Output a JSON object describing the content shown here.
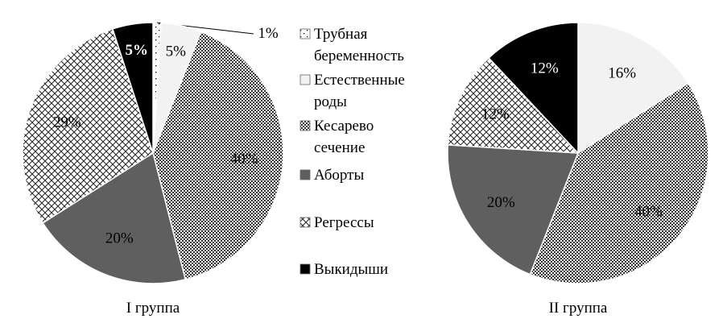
{
  "chart_data": [
    {
      "type": "pie",
      "title": "I группа",
      "categories": [
        "Трубная беременность",
        "Естественные роды",
        "Кесарево сечение",
        "Аборты",
        "Регрессы",
        "Выкидыши"
      ],
      "values": [
        1,
        5,
        40,
        20,
        29,
        5
      ],
      "labels": [
        "1%",
        "5%",
        "40%",
        "20%",
        "29%",
        "5%"
      ]
    },
    {
      "type": "pie",
      "title": "II группа",
      "categories": [
        "Трубная беременность",
        "Естественные роды",
        "Кесарево сечение",
        "Аборты",
        "Регрессы",
        "Выкидыши"
      ],
      "values": [
        0,
        16,
        40,
        20,
        12,
        12
      ],
      "labels": [
        "",
        "16%",
        "40%",
        "20%",
        "12%",
        "12%"
      ]
    }
  ],
  "legend": {
    "placement": "center",
    "items": [
      {
        "lines": [
          "Трубная",
          "беременность"
        ],
        "pattern": "sparse-dots"
      },
      {
        "lines": [
          "Естественные",
          "роды"
        ],
        "pattern": "light-gray"
      },
      {
        "lines": [
          "Кесарево",
          "сечение"
        ],
        "pattern": "dense-check"
      },
      {
        "lines": [
          "Аборты"
        ],
        "pattern": "dark-gray"
      },
      {
        "lines": [
          "Регрессы"
        ],
        "pattern": "diamond-lattice"
      },
      {
        "lines": [
          "Выкидыши"
        ],
        "pattern": "black"
      }
    ]
  },
  "colors": {
    "light_gray": "#f2f2f2",
    "dark_gray": "#5f5f5f",
    "black": "#000000"
  }
}
